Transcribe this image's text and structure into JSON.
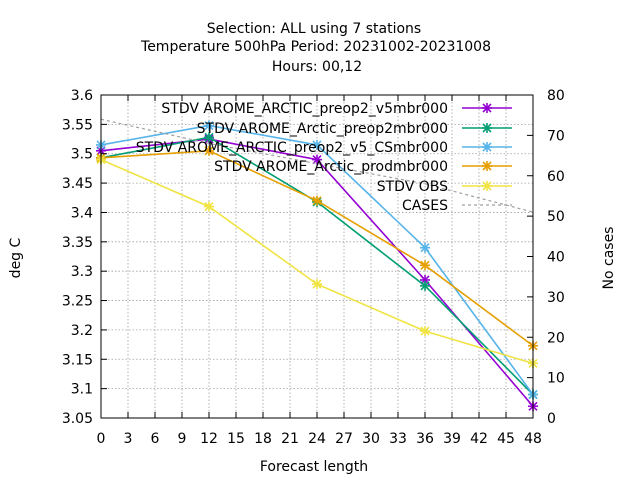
{
  "chart_data": {
    "type": "line",
    "title_lines": [
      "Selection: ALL using     7 stations",
      "Temperature 500hPa   Period: 20231002-20231008",
      "Hours:  00,12"
    ],
    "xlabel": "Forecast length",
    "ylabel": "deg C",
    "y2label": "No cases",
    "x_ticks": [
      0,
      3,
      6,
      9,
      12,
      15,
      18,
      21,
      24,
      27,
      30,
      33,
      36,
      39,
      42,
      45,
      48
    ],
    "xlim": [
      0,
      48
    ],
    "ylim": [
      3.05,
      3.6
    ],
    "y_ticks": [
      "3.05",
      "3.1",
      "3.15",
      "3.2",
      "3.25",
      "3.3",
      "3.35",
      "3.4",
      "3.45",
      "3.5",
      "3.55",
      "3.6"
    ],
    "y2lim": [
      0,
      80
    ],
    "y2_ticks": [
      "0",
      "10",
      "20",
      "30",
      "40",
      "50",
      "60",
      "70",
      "80"
    ],
    "grid": true,
    "legend_position": "top-right",
    "x": [
      0,
      12,
      24,
      36,
      48
    ],
    "series": [
      {
        "name": "STDV AROME_ARCTIC_preop2_v5mbr000",
        "color": "#9400d3",
        "axis": "y1",
        "values": [
          3.505,
          3.525,
          3.49,
          3.285,
          3.07
        ]
      },
      {
        "name": "STDV AROME_Arctic_preop2mbr000",
        "color": "#009e73",
        "axis": "y1",
        "values": [
          3.493,
          3.528,
          3.418,
          3.275,
          3.09
        ]
      },
      {
        "name": "STDV AROME_ARCTIC_preop2_v5_CSmbr000",
        "color": "#56b4e9",
        "axis": "y1",
        "values": [
          3.515,
          3.548,
          3.515,
          3.34,
          3.09
        ]
      },
      {
        "name": "STDV AROME_Arctic_prodmbr000",
        "color": "#e69f00",
        "axis": "y1",
        "values": [
          3.493,
          3.505,
          3.42,
          3.31,
          3.173
        ]
      },
      {
        "name": "STDV OBS",
        "color": "#f0e442",
        "axis": "y1",
        "values": [
          3.49,
          3.41,
          3.278,
          3.198,
          3.143
        ]
      },
      {
        "name": "CASES",
        "color": "#a0a0a0",
        "axis": "y2",
        "dashed": true,
        "values": [
          74,
          68,
          63,
          58,
          51
        ]
      }
    ]
  }
}
